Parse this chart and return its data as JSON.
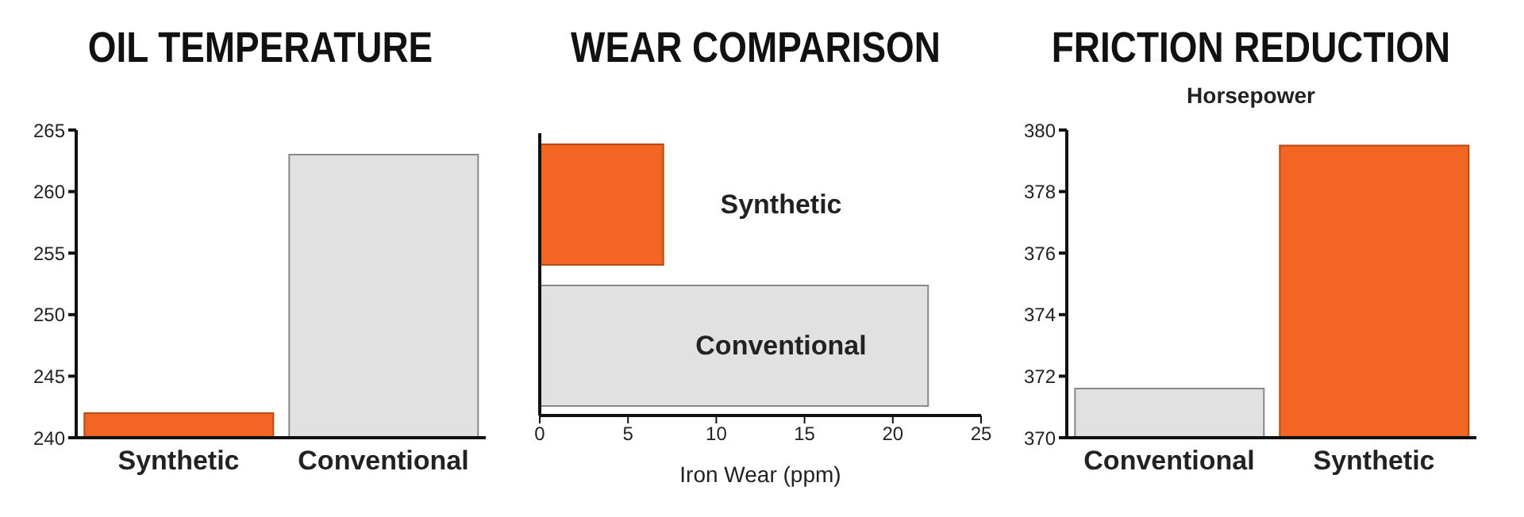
{
  "chart_data": [
    {
      "type": "bar",
      "title": "OIL TEMPERATURE",
      "categories": [
        "Synthetic",
        "Conventional"
      ],
      "values": [
        242,
        263
      ],
      "colors": [
        "#f26522",
        "#e1e1e1"
      ],
      "ylim": [
        240,
        265
      ],
      "yticks": [
        240,
        245,
        250,
        255,
        260,
        265
      ],
      "grid": false,
      "legend": false
    },
    {
      "type": "bar",
      "orientation": "horizontal",
      "title": "WEAR COMPARISON",
      "xlabel": "Iron Wear (ppm)",
      "categories": [
        "Synthetic",
        "Conventional"
      ],
      "values": [
        7,
        22
      ],
      "colors": [
        "#f26522",
        "#e1e1e1"
      ],
      "xlim": [
        0,
        25
      ],
      "xticks": [
        0,
        5,
        10,
        15,
        20,
        25
      ],
      "grid": false,
      "legend": false
    },
    {
      "type": "bar",
      "title": "FRICTION REDUCTION",
      "subtitle": "Horsepower",
      "categories": [
        "Conventional",
        "Synthetic"
      ],
      "values": [
        371.6,
        379.5
      ],
      "colors": [
        "#e1e1e1",
        "#f26522"
      ],
      "ylim": [
        370,
        380
      ],
      "yticks": [
        370,
        372,
        374,
        376,
        378,
        380
      ],
      "grid": false,
      "legend": false
    }
  ]
}
